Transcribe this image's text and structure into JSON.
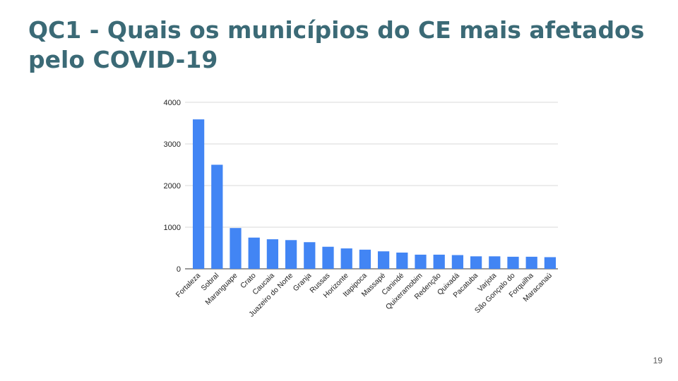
{
  "slide": {
    "title": "QC1 - Quais os municípios do CE mais afetados pelo COVID-19",
    "page_number": "19"
  },
  "chart_data": {
    "type": "bar",
    "categories": [
      "Fortaleza",
      "Sobral",
      "Maranguape",
      "Crato",
      "Caucaia",
      "Juazeiro do Norte",
      "Granja",
      "Russas",
      "Horizonte",
      "Itapipoca",
      "Massapé",
      "Canindé",
      "Quixeramobim",
      "Redenção",
      "Quixadá",
      "Pacatuba",
      "Varjota",
      "São Gonçalo do",
      "Forquilha",
      "Maracanaú"
    ],
    "series": [
      {
        "values": [
          3590,
          2500,
          980,
          750,
          710,
          690,
          640,
          530,
          490,
          460,
          420,
          390,
          340,
          340,
          330,
          300,
          300,
          290,
          290,
          280
        ]
      }
    ],
    "y_ticks": [
      "0",
      "1000",
      "2000",
      "3000",
      "4000"
    ],
    "ylim": [
      0,
      4000
    ],
    "xlabel": "",
    "ylabel": "",
    "grid": true,
    "bar_color": "#4285f4"
  }
}
